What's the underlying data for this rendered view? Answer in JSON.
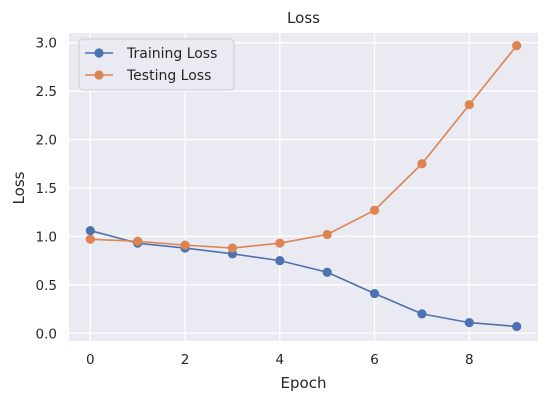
{
  "chart_data": {
    "type": "line",
    "title": "Loss",
    "xlabel": "Epoch",
    "ylabel": "Loss",
    "x": [
      0,
      1,
      2,
      3,
      4,
      5,
      6,
      7,
      8,
      9
    ],
    "xlim": [
      -0.45,
      9.45
    ],
    "ylim": [
      -0.08,
      3.1
    ],
    "xticks": [
      0,
      2,
      4,
      6,
      8
    ],
    "yticks": [
      0.0,
      0.5,
      1.0,
      1.5,
      2.0,
      2.5,
      3.0
    ],
    "xtick_labels": [
      "0",
      "2",
      "4",
      "6",
      "8"
    ],
    "ytick_labels": [
      "0.0",
      "0.5",
      "1.0",
      "1.5",
      "2.0",
      "2.5",
      "3.0"
    ],
    "grid": true,
    "legend_position": "top-left",
    "background_color": "#eaeaf2",
    "grid_color": "#ffffff",
    "series": [
      {
        "name": "Training Loss",
        "color": "#4c72b0",
        "marker": "circle",
        "values": [
          1.06,
          0.93,
          0.88,
          0.82,
          0.75,
          0.63,
          0.41,
          0.2,
          0.11,
          0.07
        ]
      },
      {
        "name": "Testing Loss",
        "color": "#dd8452",
        "marker": "circle",
        "values": [
          0.97,
          0.95,
          0.91,
          0.88,
          0.93,
          1.02,
          1.27,
          1.75,
          2.36,
          2.97
        ]
      }
    ]
  }
}
